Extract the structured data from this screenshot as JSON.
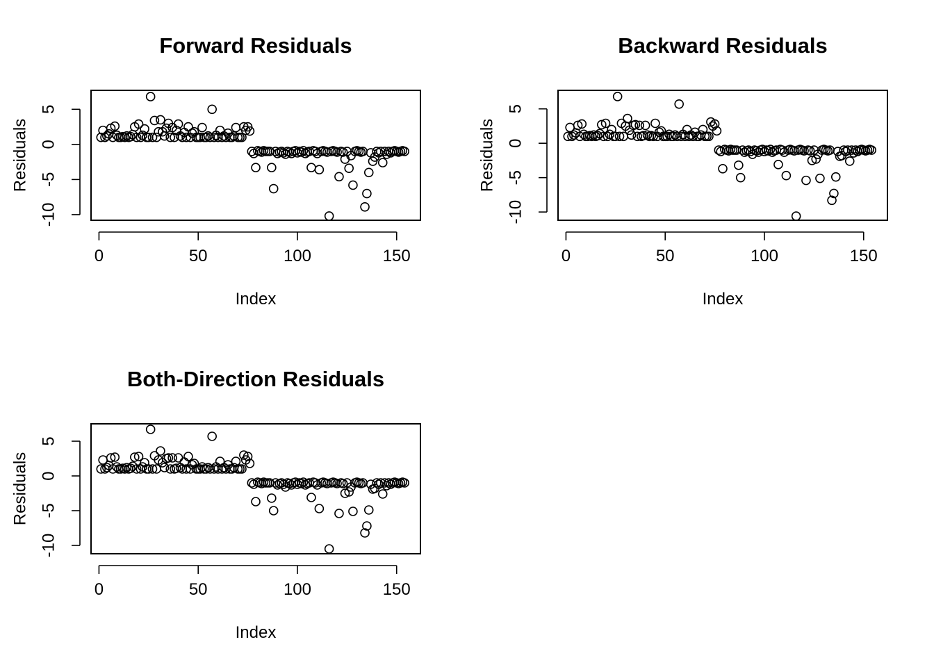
{
  "chart_data": [
    {
      "type": "scatter",
      "title": "Forward Residuals",
      "xlabel": "Index",
      "ylabel": "Residuals",
      "xlim": [
        -4,
        162
      ],
      "ylim": [
        -10.8,
        7.7
      ],
      "xticks": [
        0,
        50,
        100,
        150
      ],
      "yticks": [
        -10,
        -5,
        0,
        5
      ],
      "grid": false,
      "series": [
        {
          "x": [
            1,
            2,
            3,
            4,
            5,
            6,
            7,
            8,
            9,
            10,
            11,
            12,
            13,
            14,
            15,
            16,
            17,
            18,
            19,
            20,
            21,
            22,
            23,
            24,
            25,
            26,
            27,
            28,
            29,
            30,
            31,
            32,
            33,
            34,
            35,
            36,
            37,
            38,
            39,
            40,
            41,
            42,
            43,
            44,
            45,
            46,
            47,
            48,
            49,
            50,
            51,
            52,
            53,
            54,
            55,
            56,
            57,
            58,
            59,
            60,
            61,
            62,
            63,
            64,
            65,
            66,
            67,
            68,
            69,
            70,
            71,
            72,
            73,
            74,
            75,
            76,
            77,
            78,
            79,
            80,
            81,
            82,
            83,
            84,
            85,
            86,
            87,
            88,
            89,
            90,
            91,
            92,
            93,
            94,
            95,
            96,
            97,
            98,
            99,
            100,
            101,
            102,
            103,
            104,
            105,
            106,
            107,
            108,
            109,
            110,
            111,
            112,
            113,
            114,
            115,
            116,
            117,
            118,
            119,
            120,
            121,
            122,
            123,
            124,
            125,
            126,
            127,
            128,
            129,
            130,
            131,
            132,
            133,
            134,
            135,
            136,
            137,
            138,
            139,
            140,
            141,
            142,
            143,
            144,
            145,
            146,
            147,
            148,
            149,
            150,
            151,
            152,
            153,
            154
          ],
          "y": [
            1.0,
            2.0,
            1.0,
            1.2,
            1.5,
            2.3,
            1.0,
            2.6,
            1.3,
            1.0,
            1.0,
            1.1,
            1.0,
            1.2,
            1.0,
            1.1,
            1.4,
            2.5,
            1.0,
            2.9,
            1.0,
            1.3,
            2.2,
            1.0,
            1.0,
            6.8,
            1.0,
            3.4,
            1.0,
            1.8,
            3.5,
            1.8,
            1.2,
            2.3,
            3.0,
            1.0,
            2.4,
            1.0,
            2.0,
            2.9,
            1.2,
            1.0,
            1.7,
            1.0,
            2.5,
            1.0,
            1.6,
            1.8,
            1.0,
            1.0,
            1.0,
            2.4,
            1.0,
            1.0,
            1.2,
            1.0,
            5.0,
            1.0,
            1.3,
            1.0,
            2.0,
            1.0,
            1.2,
            1.0,
            1.6,
            1.0,
            1.0,
            1.2,
            2.4,
            1.0,
            1.0,
            1.0,
            2.5,
            2.0,
            2.5,
            1.9,
            -1.0,
            -1.3,
            -3.3,
            -0.9,
            -1.0,
            -1.1,
            -0.9,
            -1.0,
            -1.0,
            -1.0,
            -3.3,
            -6.3,
            -1.0,
            -1.3,
            -1.1,
            -1.0,
            -1.2,
            -1.4,
            -1.0,
            -1.1,
            -1.3,
            -1.0,
            -0.9,
            -1.2,
            -1.0,
            -1.1,
            -0.9,
            -1.3,
            -1.1,
            -1.0,
            -3.3,
            -0.9,
            -1.0,
            -1.3,
            -3.6,
            -1.0,
            -0.9,
            -1.0,
            -1.1,
            -10.2,
            -1.0,
            -0.9,
            -1.0,
            -1.1,
            -4.6,
            -1.0,
            -1.1,
            -2.1,
            -1.0,
            -3.4,
            -1.6,
            -5.8,
            -1.0,
            -0.9,
            -1.0,
            -1.1,
            -1.0,
            -8.9,
            -7.0,
            -4.0,
            -1.2,
            -2.4,
            -1.8,
            -1.0,
            -1.2,
            -1.0,
            -2.6,
            -1.0,
            -1.4,
            -1.0,
            -1.2,
            -1.0,
            -0.9,
            -1.0,
            -1.1,
            -1.0,
            -0.9,
            -1.0
          ]
        }
      ]
    },
    {
      "type": "scatter",
      "title": "Backward Residuals",
      "xlabel": "Index",
      "ylabel": "Residuals",
      "xlim": [
        -4,
        162
      ],
      "ylim": [
        -11.2,
        7.7
      ],
      "xticks": [
        0,
        50,
        100,
        150
      ],
      "yticks": [
        -10,
        -5,
        0,
        5
      ],
      "grid": false,
      "series": [
        {
          "x": [
            1,
            2,
            3,
            4,
            5,
            6,
            7,
            8,
            9,
            10,
            11,
            12,
            13,
            14,
            15,
            16,
            17,
            18,
            19,
            20,
            21,
            22,
            23,
            24,
            25,
            26,
            27,
            28,
            29,
            30,
            31,
            32,
            33,
            34,
            35,
            36,
            37,
            38,
            39,
            40,
            41,
            42,
            43,
            44,
            45,
            46,
            47,
            48,
            49,
            50,
            51,
            52,
            53,
            54,
            55,
            56,
            57,
            58,
            59,
            60,
            61,
            62,
            63,
            64,
            65,
            66,
            67,
            68,
            69,
            70,
            71,
            72,
            73,
            74,
            75,
            76,
            77,
            78,
            79,
            80,
            81,
            82,
            83,
            84,
            85,
            86,
            87,
            88,
            89,
            90,
            91,
            92,
            93,
            94,
            95,
            96,
            97,
            98,
            99,
            100,
            101,
            102,
            103,
            104,
            105,
            106,
            107,
            108,
            109,
            110,
            111,
            112,
            113,
            114,
            115,
            116,
            117,
            118,
            119,
            120,
            121,
            122,
            123,
            124,
            125,
            126,
            127,
            128,
            129,
            130,
            131,
            132,
            133,
            134,
            135,
            136,
            137,
            138,
            139,
            140,
            141,
            142,
            143,
            144,
            145,
            146,
            147,
            148,
            149,
            150,
            151,
            152,
            153,
            154
          ],
          "y": [
            1.0,
            2.3,
            1.0,
            1.2,
            1.5,
            2.6,
            1.0,
            2.8,
            1.3,
            1.0,
            1.0,
            1.1,
            1.0,
            1.2,
            1.0,
            1.1,
            1.4,
            2.7,
            1.0,
            2.9,
            1.0,
            1.3,
            2.0,
            1.0,
            1.0,
            6.8,
            1.0,
            2.9,
            1.0,
            2.5,
            3.6,
            1.9,
            1.2,
            2.6,
            2.7,
            1.0,
            2.6,
            1.0,
            1.1,
            2.6,
            1.2,
            1.0,
            1.1,
            1.0,
            2.9,
            1.0,
            1.6,
            1.8,
            1.0,
            1.0,
            1.0,
            1.3,
            1.0,
            1.0,
            1.2,
            1.0,
            5.7,
            1.0,
            1.3,
            1.0,
            2.0,
            1.0,
            1.2,
            1.0,
            1.6,
            1.0,
            1.0,
            1.2,
            2.0,
            1.0,
            1.0,
            1.0,
            3.1,
            2.5,
            2.8,
            1.8,
            -1.0,
            -1.2,
            -3.7,
            -0.9,
            -1.0,
            -1.1,
            -0.9,
            -1.0,
            -1.0,
            -1.0,
            -3.2,
            -5.0,
            -1.0,
            -1.3,
            -1.1,
            -1.0,
            -1.2,
            -1.6,
            -1.0,
            -1.1,
            -1.3,
            -1.0,
            -0.9,
            -1.2,
            -1.0,
            -1.1,
            -0.9,
            -1.3,
            -1.1,
            -1.0,
            -3.1,
            -0.9,
            -1.0,
            -1.3,
            -4.7,
            -1.0,
            -0.9,
            -1.0,
            -1.1,
            -10.6,
            -1.0,
            -0.9,
            -1.0,
            -1.1,
            -5.4,
            -1.0,
            -1.1,
            -2.5,
            -1.0,
            -2.3,
            -1.6,
            -5.1,
            -1.0,
            -0.9,
            -1.0,
            -1.1,
            -1.0,
            -8.3,
            -7.3,
            -4.9,
            -1.2,
            -1.9,
            -1.8,
            -1.0,
            -1.2,
            -1.0,
            -2.6,
            -1.0,
            -1.4,
            -1.0,
            -1.2,
            -1.0,
            -0.9,
            -1.0,
            -1.1,
            -1.0,
            -0.9,
            -1.0
          ]
        }
      ]
    },
    {
      "type": "scatter",
      "title": "Both-Direction Residuals",
      "xlabel": "Index",
      "ylabel": "Residuals",
      "xlim": [
        -4,
        162
      ],
      "ylim": [
        -11.2,
        7.5
      ],
      "xticks": [
        0,
        50,
        100,
        150
      ],
      "yticks": [
        -10,
        -5,
        0,
        5
      ],
      "grid": false,
      "series": [
        {
          "x": [
            1,
            2,
            3,
            4,
            5,
            6,
            7,
            8,
            9,
            10,
            11,
            12,
            13,
            14,
            15,
            16,
            17,
            18,
            19,
            20,
            21,
            22,
            23,
            24,
            25,
            26,
            27,
            28,
            29,
            30,
            31,
            32,
            33,
            34,
            35,
            36,
            37,
            38,
            39,
            40,
            41,
            42,
            43,
            44,
            45,
            46,
            47,
            48,
            49,
            50,
            51,
            52,
            53,
            54,
            55,
            56,
            57,
            58,
            59,
            60,
            61,
            62,
            63,
            64,
            65,
            66,
            67,
            68,
            69,
            70,
            71,
            72,
            73,
            74,
            75,
            76,
            77,
            78,
            79,
            80,
            81,
            82,
            83,
            84,
            85,
            86,
            87,
            88,
            89,
            90,
            91,
            92,
            93,
            94,
            95,
            96,
            97,
            98,
            99,
            100,
            101,
            102,
            103,
            104,
            105,
            106,
            107,
            108,
            109,
            110,
            111,
            112,
            113,
            114,
            115,
            116,
            117,
            118,
            119,
            120,
            121,
            122,
            123,
            124,
            125,
            126,
            127,
            128,
            129,
            130,
            131,
            132,
            133,
            134,
            135,
            136,
            137,
            138,
            139,
            140,
            141,
            142,
            143,
            144,
            145,
            146,
            147,
            148,
            149,
            150,
            151,
            152,
            153,
            154
          ],
          "y": [
            1.0,
            2.3,
            1.0,
            1.2,
            1.5,
            2.6,
            1.0,
            2.7,
            1.3,
            1.0,
            1.0,
            1.1,
            1.0,
            1.2,
            1.0,
            1.1,
            1.4,
            2.7,
            1.0,
            2.8,
            1.0,
            1.3,
            1.9,
            1.0,
            1.0,
            6.7,
            1.0,
            2.9,
            1.0,
            2.3,
            3.6,
            1.9,
            1.2,
            2.5,
            2.6,
            1.0,
            2.6,
            1.0,
            1.1,
            2.6,
            1.2,
            1.0,
            2.0,
            1.0,
            2.8,
            1.0,
            1.6,
            1.8,
            1.0,
            1.0,
            1.0,
            1.3,
            1.0,
            1.0,
            1.2,
            1.0,
            5.7,
            1.0,
            1.3,
            1.0,
            2.1,
            1.0,
            1.2,
            1.0,
            1.6,
            1.0,
            1.0,
            1.2,
            2.1,
            1.0,
            1.0,
            1.0,
            3.0,
            2.3,
            2.8,
            1.8,
            -1.0,
            -1.2,
            -3.7,
            -0.9,
            -1.0,
            -1.1,
            -0.9,
            -1.0,
            -1.0,
            -1.0,
            -3.2,
            -5.0,
            -1.0,
            -1.3,
            -1.1,
            -1.0,
            -1.2,
            -1.6,
            -1.0,
            -1.1,
            -1.3,
            -1.0,
            -0.9,
            -1.2,
            -1.0,
            -1.1,
            -0.9,
            -1.3,
            -1.1,
            -1.0,
            -3.1,
            -0.9,
            -1.0,
            -1.3,
            -4.7,
            -1.0,
            -0.9,
            -1.0,
            -1.1,
            -10.5,
            -1.0,
            -0.9,
            -1.0,
            -1.1,
            -5.4,
            -1.0,
            -1.1,
            -2.5,
            -1.0,
            -2.3,
            -1.6,
            -5.1,
            -1.0,
            -0.9,
            -1.0,
            -1.1,
            -1.0,
            -8.2,
            -7.2,
            -4.9,
            -1.2,
            -1.9,
            -1.8,
            -1.0,
            -1.2,
            -1.0,
            -2.6,
            -1.0,
            -1.4,
            -1.0,
            -1.2,
            -1.0,
            -0.9,
            -1.0,
            -1.1,
            -1.0,
            -0.9,
            -1.0
          ]
        }
      ]
    }
  ]
}
